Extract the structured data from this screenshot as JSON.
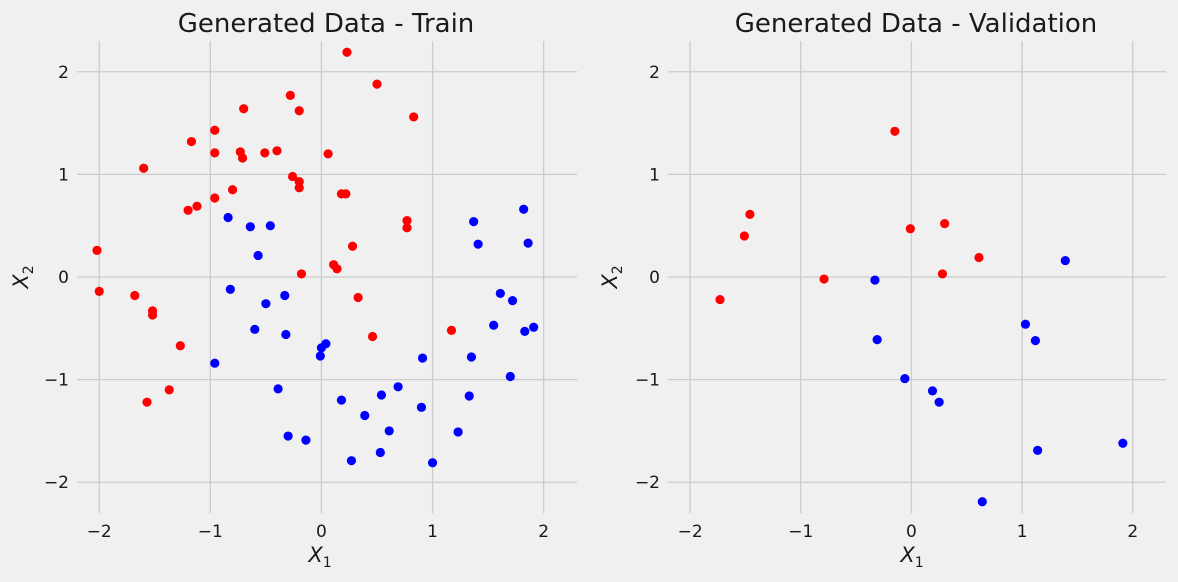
{
  "chart_data": [
    {
      "type": "scatter",
      "title": "Generated Data - Train",
      "xlabel": "X",
      "xlabel_sub": "1",
      "ylabel": "X",
      "ylabel_sub": "2",
      "xlim": [
        -2.2,
        2.3
      ],
      "ylim": [
        -2.3,
        2.3
      ],
      "xticks": [
        -2,
        -1,
        0,
        1,
        2
      ],
      "yticks": [
        -2,
        -1,
        0,
        1,
        2
      ],
      "xtick_labels": [
        "−2",
        "−1",
        "0",
        "1",
        "2"
      ],
      "ytick_labels": [
        "−2",
        "−1",
        "0",
        "1",
        "2"
      ],
      "grid": true,
      "colors": {
        "red": "#ff0000",
        "blue": "#0000ff"
      },
      "series": [
        {
          "color": "red",
          "x": [
            -2.02,
            -2.0,
            -1.68,
            -1.6,
            -1.57,
            -1.52,
            -1.52,
            -1.37,
            -1.27,
            -1.2,
            -1.17,
            -1.12,
            -0.96,
            -0.96,
            -0.96,
            -0.8,
            -0.73,
            -0.71,
            -0.7,
            -0.51,
            -0.4,
            -0.28,
            -0.26,
            -0.2,
            -0.2,
            -0.2,
            -0.18,
            0.06,
            0.11,
            0.14,
            0.18,
            0.22,
            0.23,
            0.28,
            0.33,
            0.46,
            0.5,
            0.77,
            0.77,
            0.83,
            1.17
          ],
          "y": [
            0.26,
            -0.14,
            -0.18,
            1.06,
            -1.22,
            -0.33,
            -0.37,
            -1.1,
            -0.67,
            0.65,
            1.32,
            0.69,
            1.43,
            1.21,
            0.77,
            0.85,
            1.22,
            1.16,
            1.64,
            1.21,
            1.23,
            1.77,
            0.98,
            1.62,
            0.93,
            0.87,
            0.03,
            1.2,
            0.12,
            0.08,
            0.81,
            0.81,
            2.19,
            0.3,
            -0.2,
            -0.58,
            1.88,
            0.55,
            0.48,
            1.56,
            -0.52
          ]
        },
        {
          "color": "blue",
          "x": [
            -0.96,
            -0.84,
            -0.82,
            -0.64,
            -0.6,
            -0.57,
            -0.5,
            -0.46,
            -0.39,
            -0.33,
            -0.32,
            -0.3,
            -0.14,
            -0.01,
            0.0,
            0.04,
            0.18,
            0.27,
            0.39,
            0.53,
            0.54,
            0.61,
            0.69,
            0.9,
            0.91,
            1.0,
            1.23,
            1.33,
            1.35,
            1.37,
            1.41,
            1.55,
            1.61,
            1.7,
            1.72,
            1.82,
            1.83,
            1.86,
            1.91
          ],
          "y": [
            -0.84,
            0.58,
            -0.12,
            0.49,
            -0.51,
            0.21,
            -0.26,
            0.5,
            -1.09,
            -0.18,
            -0.56,
            -1.55,
            -1.59,
            -0.77,
            -0.69,
            -0.65,
            -1.2,
            -1.79,
            -1.35,
            -1.71,
            -1.15,
            -1.5,
            -1.07,
            -1.27,
            -0.79,
            -1.81,
            -1.51,
            -1.16,
            -0.78,
            0.54,
            0.32,
            -0.47,
            -0.16,
            -0.97,
            -0.23,
            0.66,
            -0.53,
            0.33,
            -0.49
          ]
        }
      ]
    },
    {
      "type": "scatter",
      "title": "Generated Data - Validation",
      "xlabel": "X",
      "xlabel_sub": "1",
      "ylabel": "X",
      "ylabel_sub": "2",
      "xlim": [
        -2.2,
        2.3
      ],
      "ylim": [
        -2.3,
        2.3
      ],
      "xticks": [
        -2,
        -1,
        0,
        1,
        2
      ],
      "yticks": [
        -2,
        -1,
        0,
        1,
        2
      ],
      "xtick_labels": [
        "−2",
        "−1",
        "0",
        "1",
        "2"
      ],
      "ytick_labels": [
        "−2",
        "−1",
        "0",
        "1",
        "2"
      ],
      "grid": true,
      "colors": {
        "red": "#ff0000",
        "blue": "#0000ff"
      },
      "series": [
        {
          "color": "red",
          "x": [
            -1.73,
            -1.51,
            -1.46,
            -0.79,
            -0.15,
            -0.01,
            0.28,
            0.3,
            0.61
          ],
          "y": [
            -0.22,
            0.4,
            0.61,
            -0.02,
            1.42,
            0.47,
            0.03,
            0.52,
            0.19
          ]
        },
        {
          "color": "blue",
          "x": [
            -0.33,
            -0.31,
            -0.06,
            0.19,
            0.25,
            0.64,
            1.03,
            1.12,
            1.14,
            1.39,
            1.91
          ],
          "y": [
            -0.03,
            -0.61,
            -0.99,
            -1.11,
            -1.22,
            -2.19,
            -0.46,
            -0.62,
            -1.69,
            0.16,
            -1.62
          ]
        }
      ]
    }
  ]
}
